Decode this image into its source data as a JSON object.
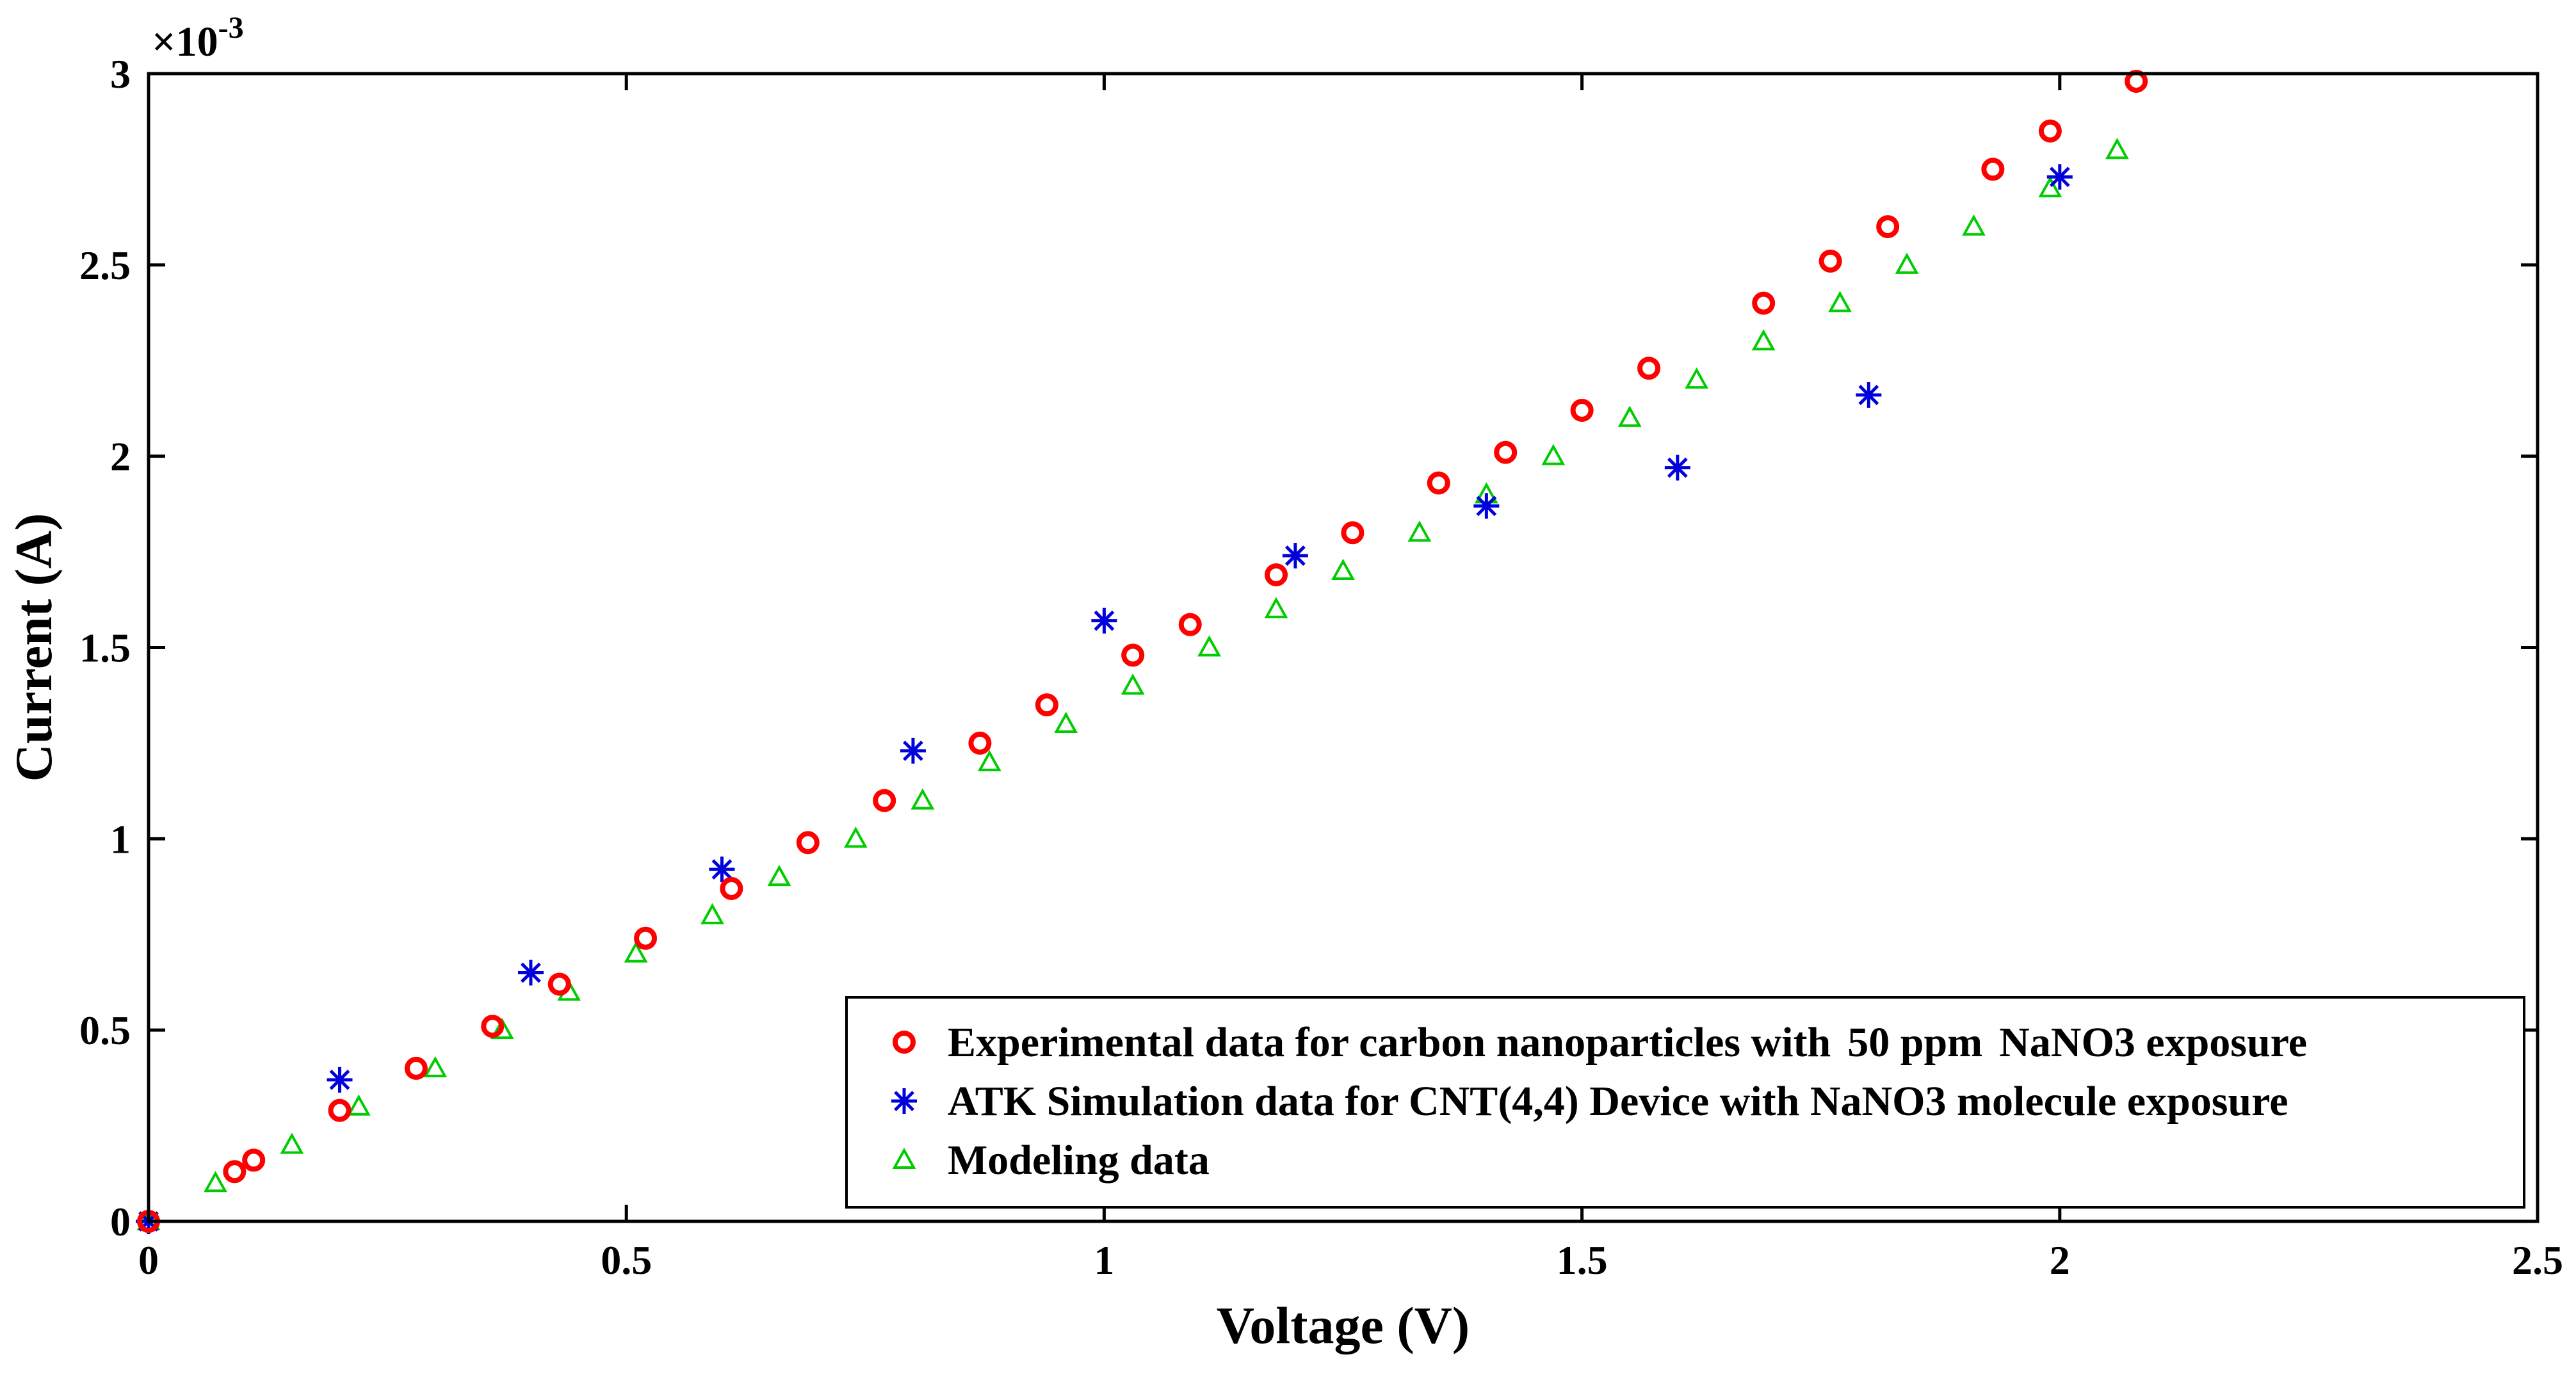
{
  "chart_data": {
    "type": "scatter",
    "title": "",
    "xlabel": "Voltage (V)",
    "ylabel": "Current (A)",
    "y_multiplier_label": "×10",
    "y_multiplier_exponent": "-3",
    "xlim": [
      0,
      2.5
    ],
    "ylim": [
      0,
      3
    ],
    "x_ticks": [
      0,
      0.5,
      1,
      1.5,
      2,
      2.5
    ],
    "x_tick_labels": [
      "0",
      "0.5",
      "1",
      "1.5",
      "2",
      "2.5"
    ],
    "y_ticks": [
      0,
      0.5,
      1,
      1.5,
      2,
      2.5,
      3
    ],
    "y_tick_labels": [
      "0",
      "0.5",
      "1",
      "1.5",
      "2",
      "2.5",
      "3"
    ],
    "grid": false,
    "legend_position": "bottom-right",
    "series": [
      {
        "name": "Experimental data for carbon nanoparticles with",
        "name_highlight": "50 ppm",
        "name_suffix": "NaNO3 exposure",
        "marker": "circle",
        "color": "#ff0000",
        "points": [
          [
            0,
            0
          ],
          [
            0.09,
            0.13
          ],
          [
            0.11,
            0.16
          ],
          [
            0.2,
            0.29
          ],
          [
            0.28,
            0.4
          ],
          [
            0.36,
            0.51
          ],
          [
            0.43,
            0.62
          ],
          [
            0.52,
            0.74
          ],
          [
            0.61,
            0.87
          ],
          [
            0.69,
            0.99
          ],
          [
            0.77,
            1.1
          ],
          [
            0.87,
            1.25
          ],
          [
            0.94,
            1.35
          ],
          [
            1.03,
            1.48
          ],
          [
            1.09,
            1.56
          ],
          [
            1.18,
            1.69
          ],
          [
            1.26,
            1.8
          ],
          [
            1.35,
            1.93
          ],
          [
            1.42,
            2.01
          ],
          [
            1.5,
            2.12
          ],
          [
            1.57,
            2.23
          ],
          [
            1.69,
            2.4
          ],
          [
            1.76,
            2.51
          ],
          [
            1.82,
            2.6
          ],
          [
            1.93,
            2.75
          ],
          [
            1.99,
            2.85
          ],
          [
            2.08,
            2.98
          ]
        ]
      },
      {
        "name": "ATK Simulation data for CNT(4,4) Device with NaNO3 molecule exposure",
        "marker": "asterisk",
        "color": "#0000dd",
        "points": [
          [
            0,
            0
          ],
          [
            0.2,
            0.37
          ],
          [
            0.4,
            0.65
          ],
          [
            0.6,
            0.92
          ],
          [
            0.8,
            1.23
          ],
          [
            1.0,
            1.57
          ],
          [
            1.2,
            1.74
          ],
          [
            1.4,
            1.87
          ],
          [
            1.6,
            1.97
          ],
          [
            1.8,
            2.16
          ],
          [
            2.0,
            2.73
          ]
        ]
      },
      {
        "name": "Modeling data",
        "marker": "triangle",
        "color": "#00cc00",
        "points": [
          [
            0,
            0
          ],
          [
            0.07,
            0.1
          ],
          [
            0.15,
            0.2
          ],
          [
            0.22,
            0.3
          ],
          [
            0.3,
            0.4
          ],
          [
            0.37,
            0.5
          ],
          [
            0.44,
            0.6
          ],
          [
            0.51,
            0.7
          ],
          [
            0.59,
            0.8
          ],
          [
            0.66,
            0.9
          ],
          [
            0.74,
            1.0
          ],
          [
            0.81,
            1.1
          ],
          [
            0.88,
            1.2
          ],
          [
            0.96,
            1.3
          ],
          [
            1.03,
            1.4
          ],
          [
            1.11,
            1.5
          ],
          [
            1.18,
            1.6
          ],
          [
            1.25,
            1.7
          ],
          [
            1.33,
            1.8
          ],
          [
            1.4,
            1.9
          ],
          [
            1.47,
            2.0
          ],
          [
            1.55,
            2.1
          ],
          [
            1.62,
            2.2
          ],
          [
            1.69,
            2.3
          ],
          [
            1.77,
            2.4
          ],
          [
            1.84,
            2.5
          ],
          [
            1.91,
            2.6
          ],
          [
            1.99,
            2.7
          ],
          [
            2.06,
            2.8
          ]
        ]
      }
    ]
  }
}
